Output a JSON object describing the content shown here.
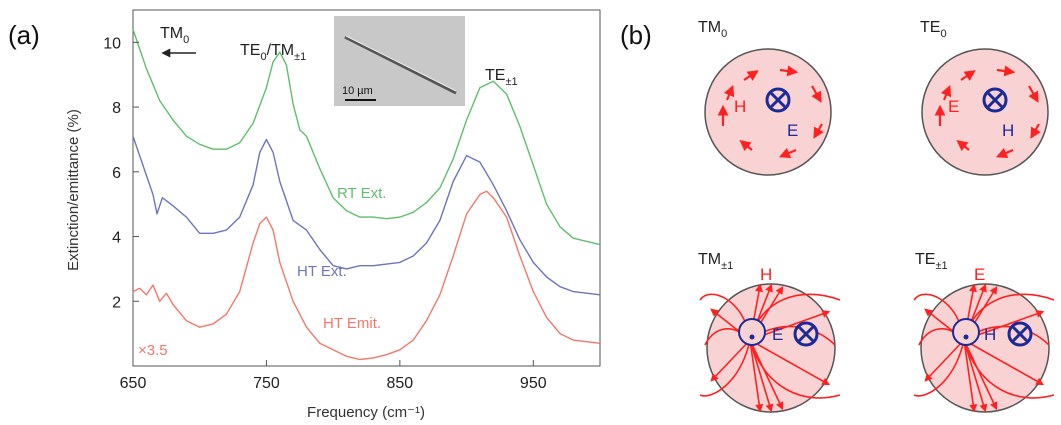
{
  "panel_a_label": "(a)",
  "panel_b_label": "(b)",
  "chart_data": {
    "type": "line",
    "xlabel": "Frequency (cm⁻¹)",
    "ylabel": "Extinction/emittance (%)",
    "xlim": [
      650,
      1000
    ],
    "ylim": [
      0,
      11
    ],
    "xticks": [
      650,
      750,
      850,
      950
    ],
    "yticks": [
      2,
      4,
      6,
      8,
      10
    ],
    "grid": false,
    "series": [
      {
        "name": "RT Ext.",
        "color": "#5fbf6e",
        "x": [
          650,
          660,
          670,
          680,
          690,
          700,
          710,
          720,
          730,
          740,
          750,
          755,
          760,
          765,
          770,
          775,
          780,
          785,
          790,
          800,
          810,
          820,
          830,
          840,
          850,
          860,
          870,
          880,
          890,
          900,
          910,
          920,
          930,
          940,
          950,
          960,
          970,
          980,
          990,
          1000
        ],
        "y": [
          10.4,
          9.2,
          8.2,
          7.6,
          7.1,
          6.85,
          6.7,
          6.7,
          6.9,
          7.5,
          8.6,
          9.4,
          9.7,
          9.3,
          8.1,
          7.3,
          7.1,
          6.6,
          6.1,
          5.2,
          4.8,
          4.6,
          4.6,
          4.55,
          4.6,
          4.75,
          5.05,
          5.5,
          6.4,
          7.6,
          8.6,
          8.8,
          8.4,
          7.4,
          6.2,
          5.0,
          4.3,
          3.95,
          3.85,
          3.75
        ]
      },
      {
        "name": "HT Ext.",
        "color": "#6d75bd",
        "x": [
          650,
          660,
          665,
          668,
          672,
          680,
          690,
          700,
          710,
          720,
          730,
          740,
          745,
          750,
          755,
          760,
          770,
          780,
          790,
          800,
          810,
          820,
          830,
          840,
          850,
          860,
          870,
          880,
          890,
          900,
          910,
          920,
          930,
          940,
          950,
          960,
          970,
          980,
          990,
          1000
        ],
        "y": [
          7.1,
          5.9,
          5.3,
          4.7,
          5.2,
          4.95,
          4.6,
          4.1,
          4.1,
          4.2,
          4.6,
          5.6,
          6.6,
          7.0,
          6.6,
          5.7,
          4.5,
          4.2,
          3.6,
          3.1,
          3.0,
          3.1,
          3.1,
          3.15,
          3.2,
          3.4,
          3.8,
          4.5,
          5.7,
          6.5,
          6.3,
          5.6,
          4.8,
          3.9,
          3.2,
          2.75,
          2.45,
          2.3,
          2.25,
          2.2
        ]
      },
      {
        "name": "HT Emit.",
        "color": "#f2786a",
        "x": [
          650,
          655,
          660,
          665,
          670,
          675,
          680,
          690,
          700,
          710,
          720,
          730,
          740,
          745,
          750,
          755,
          760,
          770,
          780,
          790,
          800,
          810,
          820,
          830,
          840,
          850,
          860,
          870,
          880,
          890,
          900,
          910,
          915,
          920,
          930,
          940,
          950,
          960,
          970,
          980,
          990,
          1000
        ],
        "y": [
          2.3,
          2.4,
          2.2,
          2.5,
          2.0,
          2.25,
          1.9,
          1.4,
          1.2,
          1.3,
          1.6,
          2.3,
          3.8,
          4.4,
          4.6,
          4.2,
          3.2,
          2.0,
          1.2,
          0.7,
          0.5,
          0.3,
          0.2,
          0.25,
          0.35,
          0.5,
          0.8,
          1.4,
          2.2,
          3.4,
          4.7,
          5.3,
          5.4,
          5.2,
          4.6,
          3.4,
          2.3,
          1.5,
          1.0,
          0.8,
          0.75,
          0.7
        ]
      }
    ],
    "annotations": {
      "tm0": "TM",
      "tm0_sub": "0",
      "te0tm": "TE",
      "te0tm_sub1": "0",
      "te0tm_mid": "/TM",
      "te0tm_sub2": "±1",
      "tepm": "TE",
      "tepm_sub": "±1",
      "scale": "×3.5",
      "scalebar": "10 µm"
    }
  },
  "modes": {
    "tm0": {
      "name": "TM",
      "sub": "0",
      "inner": "H",
      "center": "E"
    },
    "te0": {
      "name": "TE",
      "sub": "0",
      "inner": "E",
      "center": "H"
    },
    "tmpm": {
      "name": "TM",
      "sub": "±1",
      "top": "H",
      "center": "E"
    },
    "tepm": {
      "name": "TE",
      "sub": "±1",
      "top": "E",
      "center": "H"
    }
  },
  "colors": {
    "disk_fill": "#f9d3d3",
    "field_red": "#ff2020",
    "field_blue": "#1a2a9a"
  }
}
